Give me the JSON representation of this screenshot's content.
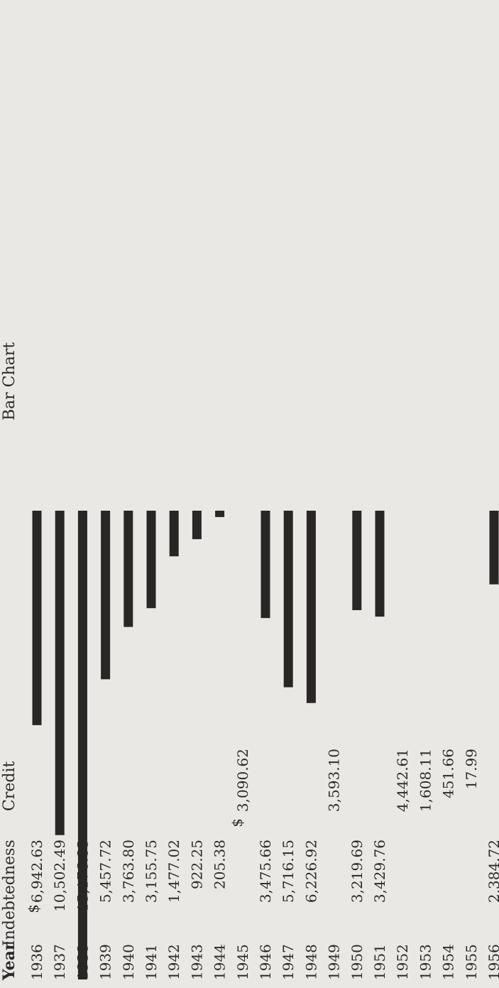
{
  "chart_data": {
    "type": "bar",
    "title": "Bar Chart",
    "headers": {
      "year": "Year",
      "indebtedness": "Indebtedness",
      "credit": "Credit"
    },
    "currency_symbol": "$",
    "categories": [
      "1936",
      "1937",
      "1938",
      "1939",
      "1940",
      "1941",
      "1942",
      "1943",
      "1944",
      "1945",
      "1946",
      "1947",
      "1948",
      "1949",
      "1950",
      "1951",
      "1952",
      "1953",
      "1954",
      "1955",
      "1956"
    ],
    "indebtedness": [
      "6,942.63",
      "10,502.49",
      "15,176.83",
      "5,457.72",
      "3,763.80",
      "3,155.75",
      "1,477.02",
      "922.25",
      "205.38",
      "",
      "3,475.66",
      "5,716.15",
      "6,226.92",
      "",
      "3,219.69",
      "3,429.76",
      "",
      "",
      "",
      "",
      "2,384.72"
    ],
    "credit": [
      "",
      "",
      "",
      "",
      "",
      "",
      "",
      "",
      "",
      "3,090.62",
      "",
      "",
      "",
      "3,593.10",
      "",
      "",
      "4,442.61",
      "1,608.11",
      "451.66",
      "17.99",
      ""
    ],
    "values": [
      6942.63,
      10502.49,
      15176.83,
      5457.72,
      3763.8,
      3155.75,
      1477.02,
      922.25,
      205.38,
      0,
      3475.66,
      5716.15,
      6226.92,
      0,
      3219.69,
      3429.76,
      0,
      0,
      0,
      0,
      2384.72
    ],
    "ylim": [
      0,
      15176.83
    ],
    "colors": {
      "bar": "#2b2626",
      "text": "#2a2a2a",
      "background": "#e9e8e4"
    }
  }
}
